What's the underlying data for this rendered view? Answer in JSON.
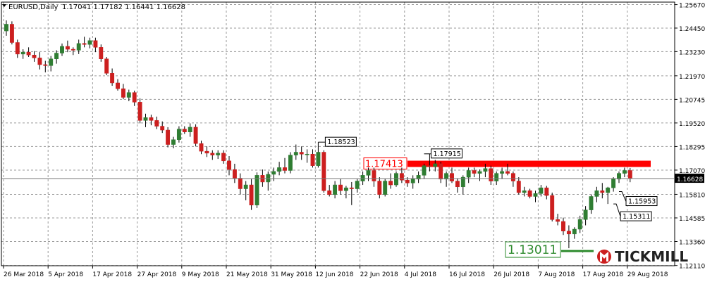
{
  "header": {
    "symbol": "EURUSD,Daily",
    "ohlc": "1.17041 1.17182 1.16441 1.16628"
  },
  "colors": {
    "up": "#2f7d32",
    "down": "#cc1f1f",
    "resistance": "#ff0000",
    "support": "#2e8b2e",
    "grid": "#9a9a9a",
    "price_tag_bg": "#000000"
  },
  "watermark": {
    "brand": "TICKMILL",
    "icon": "tickmill-logo-icon"
  },
  "chart_data": {
    "type": "candlestick",
    "title": "EURUSD,Daily",
    "ylim": [
      1.121,
      1.258
    ],
    "y_ticks": [
      "1.25670",
      "1.24450",
      "1.23230",
      "1.21970",
      "1.20745",
      "1.19520",
      "1.18295",
      "1.17070",
      "1.15810",
      "1.14585",
      "1.13360",
      "1.12110"
    ],
    "x_ticks": [
      {
        "label": "26 Mar 2018",
        "index": 0
      },
      {
        "label": "5 Apr 2018",
        "index": 8
      },
      {
        "label": "17 Apr 2018",
        "index": 16
      },
      {
        "label": "27 Apr 2018",
        "index": 24
      },
      {
        "label": "9 May 2018",
        "index": 32
      },
      {
        "label": "21 May 2018",
        "index": 40
      },
      {
        "label": "31 May 2018",
        "index": 48
      },
      {
        "label": "12 Jun 2018",
        "index": 56
      },
      {
        "label": "22 Jun 2018",
        "index": 64
      },
      {
        "label": "4 Jul 2018",
        "index": 72
      },
      {
        "label": "16 Jul 2018",
        "index": 80
      },
      {
        "label": "26 Jul 2018",
        "index": 88
      },
      {
        "label": "7 Aug 2018",
        "index": 96
      },
      {
        "label": "17 Aug 2018",
        "index": 104
      },
      {
        "label": "29 Aug 2018",
        "index": 112
      }
    ],
    "current_price": "1.16628",
    "candles": [
      [
        1.243,
        1.2485,
        1.2405,
        1.2465
      ],
      [
        1.2465,
        1.248,
        1.236,
        1.237
      ],
      [
        1.237,
        1.2385,
        1.229,
        1.231
      ],
      [
        1.231,
        1.2335,
        1.2285,
        1.232
      ],
      [
        1.232,
        1.2345,
        1.2295,
        1.2305
      ],
      [
        1.2305,
        1.2325,
        1.227,
        1.229
      ],
      [
        1.229,
        1.232,
        1.223,
        1.2255
      ],
      [
        1.2255,
        1.2275,
        1.2215,
        1.225
      ],
      [
        1.225,
        1.23,
        1.222,
        1.2285
      ],
      [
        1.2285,
        1.233,
        1.226,
        1.2315
      ],
      [
        1.2315,
        1.2365,
        1.23,
        1.235
      ],
      [
        1.235,
        1.238,
        1.232,
        1.2335
      ],
      [
        1.2335,
        1.2345,
        1.2305,
        1.233
      ],
      [
        1.233,
        1.2385,
        1.231,
        1.2365
      ],
      [
        1.2365,
        1.24,
        1.2345,
        1.236
      ],
      [
        1.236,
        1.2395,
        1.234,
        1.238
      ],
      [
        1.238,
        1.2395,
        1.232,
        1.2345
      ],
      [
        1.2345,
        1.236,
        1.227,
        1.2285
      ],
      [
        1.2285,
        1.2295,
        1.22,
        1.221
      ],
      [
        1.221,
        1.2235,
        1.2145,
        1.216
      ],
      [
        1.216,
        1.218,
        1.212,
        1.213
      ],
      [
        1.213,
        1.2155,
        1.2075,
        1.2085
      ],
      [
        1.2085,
        1.2125,
        1.2065,
        1.211
      ],
      [
        1.211,
        1.212,
        1.204,
        1.206
      ],
      [
        1.206,
        1.208,
        1.195,
        1.1965
      ],
      [
        1.1965,
        1.2,
        1.193,
        1.198
      ],
      [
        1.198,
        1.1995,
        1.194,
        1.1965
      ],
      [
        1.1965,
        1.1985,
        1.192,
        1.1935
      ],
      [
        1.1935,
        1.196,
        1.19,
        1.1915
      ],
      [
        1.1915,
        1.193,
        1.1825,
        1.184
      ],
      [
        1.184,
        1.188,
        1.182,
        1.1865
      ],
      [
        1.1865,
        1.1935,
        1.185,
        1.192
      ],
      [
        1.192,
        1.1935,
        1.1895,
        1.1905
      ],
      [
        1.1905,
        1.195,
        1.188,
        1.193
      ],
      [
        1.193,
        1.1945,
        1.183,
        1.1845
      ],
      [
        1.1845,
        1.186,
        1.179,
        1.1805
      ],
      [
        1.1805,
        1.183,
        1.1775,
        1.1795
      ],
      [
        1.1795,
        1.181,
        1.176,
        1.1785
      ],
      [
        1.1785,
        1.181,
        1.1765,
        1.1795
      ],
      [
        1.1795,
        1.181,
        1.174,
        1.1755
      ],
      [
        1.1755,
        1.178,
        1.168,
        1.171
      ],
      [
        1.171,
        1.174,
        1.164,
        1.1665
      ],
      [
        1.1665,
        1.169,
        1.158,
        1.161
      ],
      [
        1.161,
        1.165,
        1.155,
        1.163
      ],
      [
        1.163,
        1.166,
        1.15,
        1.1525
      ],
      [
        1.1525,
        1.1695,
        1.151,
        1.168
      ],
      [
        1.168,
        1.171,
        1.162,
        1.1645
      ],
      [
        1.1645,
        1.17,
        1.16,
        1.1685
      ],
      [
        1.1685,
        1.172,
        1.165,
        1.17
      ],
      [
        1.17,
        1.175,
        1.168,
        1.172
      ],
      [
        1.172,
        1.177,
        1.169,
        1.1705
      ],
      [
        1.1705,
        1.18,
        1.169,
        1.1785
      ],
      [
        1.1785,
        1.184,
        1.176,
        1.18
      ],
      [
        1.18,
        1.183,
        1.176,
        1.179
      ],
      [
        1.179,
        1.1815,
        1.1745,
        1.179
      ],
      [
        1.179,
        1.1815,
        1.172,
        1.173
      ],
      [
        1.173,
        1.1852,
        1.172,
        1.18
      ],
      [
        1.18,
        1.181,
        1.159,
        1.16
      ],
      [
        1.16,
        1.163,
        1.157,
        1.158
      ],
      [
        1.158,
        1.165,
        1.156,
        1.163
      ],
      [
        1.163,
        1.166,
        1.158,
        1.16
      ],
      [
        1.16,
        1.1625,
        1.156,
        1.1615
      ],
      [
        1.1615,
        1.1645,
        1.1525,
        1.161
      ],
      [
        1.161,
        1.166,
        1.159,
        1.165
      ],
      [
        1.165,
        1.17,
        1.163,
        1.168
      ],
      [
        1.168,
        1.172,
        1.165,
        1.1705
      ],
      [
        1.1705,
        1.172,
        1.162,
        1.165
      ],
      [
        1.165,
        1.167,
        1.156,
        1.158
      ],
      [
        1.158,
        1.166,
        1.157,
        1.165
      ],
      [
        1.165,
        1.169,
        1.161,
        1.163
      ],
      [
        1.163,
        1.17,
        1.162,
        1.169
      ],
      [
        1.169,
        1.172,
        1.164,
        1.1655
      ],
      [
        1.1655,
        1.167,
        1.162,
        1.164
      ],
      [
        1.164,
        1.168,
        1.161,
        1.166
      ],
      [
        1.166,
        1.17,
        1.164,
        1.168
      ],
      [
        1.168,
        1.174,
        1.166,
        1.173
      ],
      [
        1.173,
        1.1792,
        1.17,
        1.1725
      ],
      [
        1.1725,
        1.176,
        1.17,
        1.174
      ],
      [
        1.174,
        1.175,
        1.164,
        1.166
      ],
      [
        1.166,
        1.17,
        1.162,
        1.169
      ],
      [
        1.169,
        1.172,
        1.164,
        1.165
      ],
      [
        1.165,
        1.1665,
        1.159,
        1.162
      ],
      [
        1.162,
        1.168,
        1.158,
        1.167
      ],
      [
        1.167,
        1.172,
        1.164,
        1.1705
      ],
      [
        1.1705,
        1.172,
        1.167,
        1.169
      ],
      [
        1.169,
        1.171,
        1.165,
        1.17
      ],
      [
        1.17,
        1.174,
        1.167,
        1.1715
      ],
      [
        1.1715,
        1.173,
        1.163,
        1.165
      ],
      [
        1.165,
        1.17,
        1.163,
        1.169
      ],
      [
        1.169,
        1.172,
        1.166,
        1.17
      ],
      [
        1.17,
        1.174,
        1.168,
        1.169
      ],
      [
        1.169,
        1.17,
        1.162,
        1.165
      ],
      [
        1.165,
        1.167,
        1.158,
        1.159
      ],
      [
        1.159,
        1.162,
        1.157,
        1.16
      ],
      [
        1.16,
        1.161,
        1.156,
        1.157
      ],
      [
        1.157,
        1.16,
        1.154,
        1.1585
      ],
      [
        1.1585,
        1.163,
        1.157,
        1.1615
      ],
      [
        1.1615,
        1.1625,
        1.1555,
        1.1575
      ],
      [
        1.1575,
        1.159,
        1.144,
        1.145
      ],
      [
        1.145,
        1.148,
        1.142,
        1.144
      ],
      [
        1.144,
        1.146,
        1.137,
        1.139
      ],
      [
        1.139,
        1.142,
        1.1301,
        1.1375
      ],
      [
        1.1375,
        1.141,
        1.135,
        1.14
      ],
      [
        1.14,
        1.147,
        1.138,
        1.145
      ],
      [
        1.145,
        1.152,
        1.142,
        1.15
      ],
      [
        1.15,
        1.158,
        1.148,
        1.157
      ],
      [
        1.157,
        1.162,
        1.154,
        1.16
      ],
      [
        1.16,
        1.164,
        1.156,
        1.159
      ],
      [
        1.159,
        1.162,
        1.1531,
        1.1615
      ],
      [
        1.1615,
        1.167,
        1.1595,
        1.166
      ],
      [
        1.166,
        1.17,
        1.164,
        1.169
      ],
      [
        1.169,
        1.172,
        1.167,
        1.1705
      ],
      [
        1.1705,
        1.1718,
        1.1644,
        1.1663
      ]
    ],
    "annotations": [
      {
        "label": "1.18523",
        "index": 56,
        "price": 1.18523
      },
      {
        "label": "1.17915",
        "index": 75,
        "price": 1.17915
      },
      {
        "label": "1.15953",
        "index": 110,
        "price": 1.15953
      },
      {
        "label": "1.15311",
        "index": 109,
        "price": 1.15311
      }
    ],
    "resistance": {
      "label": "1.17413",
      "price": 1.17413
    },
    "support": {
      "label": "1.13011",
      "price": 1.13011
    }
  }
}
